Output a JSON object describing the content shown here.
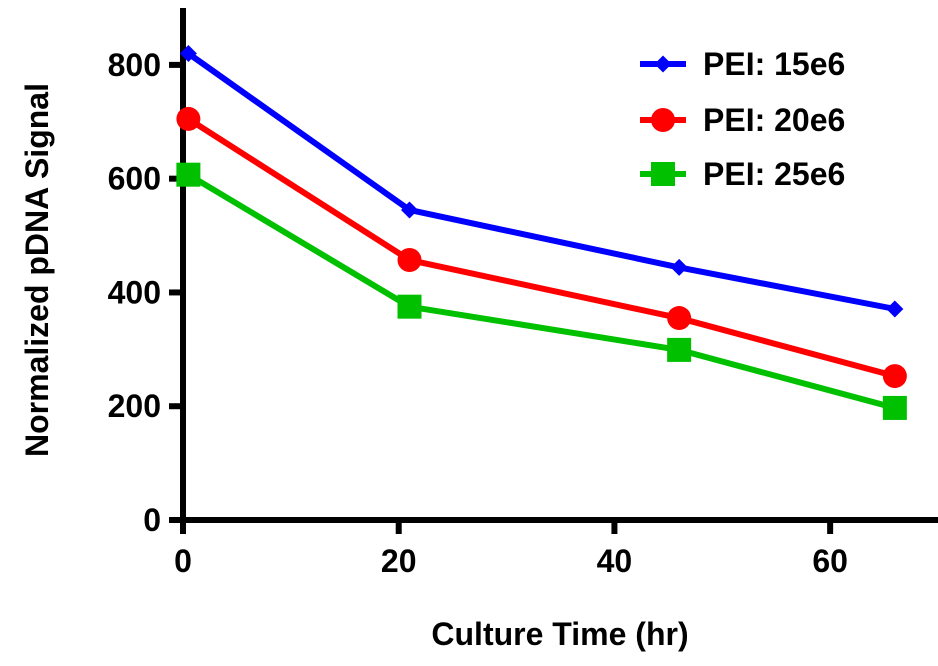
{
  "chart_data": {
    "type": "line",
    "title": "",
    "xlabel": "Culture Time (hr)",
    "ylabel": "Normalized pDNA Signal",
    "xlim": [
      0,
      70
    ],
    "ylim": [
      0,
      900
    ],
    "xticks": [
      0,
      20,
      40,
      60
    ],
    "yticks": [
      0,
      200,
      400,
      600,
      800
    ],
    "grid": false,
    "legend_position": "top-right",
    "series": [
      {
        "name": "PEI: 15e6",
        "color": "#0000ff",
        "marker": "diamond",
        "x": [
          0.5,
          21,
          46,
          66
        ],
        "values": [
          820,
          545,
          444,
          371
        ]
      },
      {
        "name": "PEI: 20e6",
        "color": "#ff0000",
        "marker": "circle",
        "x": [
          0.5,
          21,
          46,
          66
        ],
        "values": [
          705,
          457,
          355,
          253
        ]
      },
      {
        "name": "PEI: 25e6",
        "color": "#00c000",
        "marker": "square",
        "x": [
          0.5,
          21,
          46,
          66
        ],
        "values": [
          607,
          375,
          299,
          197
        ]
      }
    ]
  }
}
